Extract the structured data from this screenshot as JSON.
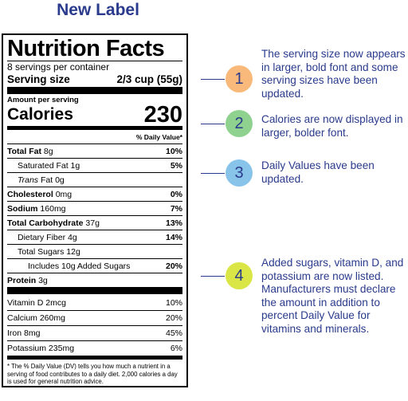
{
  "heading": "New Label",
  "label": {
    "title": "Nutrition Facts",
    "servings": "8 servings per container",
    "serving_size_label": "Serving size",
    "serving_size_value": "2/3 cup (55g)",
    "amount_per_serving": "Amount per serving",
    "calories_label": "Calories",
    "calories_value": "230",
    "daily_value_header": "% Daily Value*",
    "total_fat": {
      "name": "Total Fat",
      "amount": "8g",
      "pct": "10%"
    },
    "saturated_fat": {
      "name": "Saturated Fat",
      "amount": "1g",
      "pct": "5%"
    },
    "trans_fat": {
      "name": "Trans",
      "suffix": "Fat 0g"
    },
    "cholesterol": {
      "name": "Cholesterol",
      "amount": "0mg",
      "pct": "0%"
    },
    "sodium": {
      "name": "Sodium",
      "amount": "160mg",
      "pct": "7%"
    },
    "total_carb": {
      "name": "Total Carbohydrate",
      "amount": "37g",
      "pct": "13%"
    },
    "fiber": {
      "name": "Dietary Fiber",
      "amount": "4g",
      "pct": "14%"
    },
    "total_sugars": {
      "name": "Total Sugars",
      "amount": "12g"
    },
    "added_sugars": {
      "text": "Includes 10g Added Sugars",
      "pct": "20%"
    },
    "protein": {
      "name": "Protein",
      "amount": "3g"
    },
    "vitamins": [
      {
        "text": "Vitamin D 2mcg",
        "pct": "10%"
      },
      {
        "text": "Calcium 260mg",
        "pct": "20%"
      },
      {
        "text": "Iron 8mg",
        "pct": "45%"
      },
      {
        "text": "Potassium 235mg",
        "pct": "6%"
      }
    ],
    "footnote": "* The % Daily Value (DV) tells you how much a nutrient in a serving of food contributes to a daily diet. 2,000 calories a day is used for general nutrition advice."
  },
  "annotations": [
    {
      "number": "1",
      "color": "#f9b97a",
      "text": "The serving size now appears in larger, bold font and some serving sizes have been updated."
    },
    {
      "number": "2",
      "color": "#8fd18f",
      "text": "Calories are now displayed in larger, bolder font."
    },
    {
      "number": "3",
      "color": "#88c3ea",
      "text": "Daily Values have been updated."
    },
    {
      "number": "4",
      "color": "#d9e645",
      "text": "Added sugars, vitamin D, and potassium are now listed. Manufacturers must declare the amount in addition to percent Daily Value for vitamins and minerals."
    }
  ]
}
